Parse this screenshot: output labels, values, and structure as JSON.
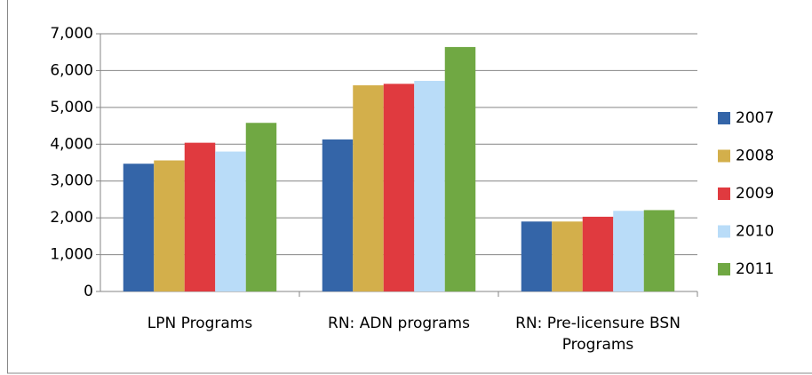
{
  "chart_data": {
    "type": "bar",
    "categories": [
      "LPN Programs",
      "RN: ADN programs",
      "RN: Pre-licensure BSN Programs"
    ],
    "series": [
      {
        "name": "2007",
        "color": "#3465a8",
        "values": [
          3470,
          4130,
          1900
        ]
      },
      {
        "name": "2008",
        "color": "#d3af4b",
        "values": [
          3560,
          5600,
          1900
        ]
      },
      {
        "name": "2009",
        "color": "#e03a3f",
        "values": [
          4040,
          5640,
          2030
        ]
      },
      {
        "name": "2010",
        "color": "#b9dcf8",
        "values": [
          3800,
          5720,
          2190
        ]
      },
      {
        "name": "2011",
        "color": "#70a843",
        "values": [
          4580,
          6640,
          2210
        ]
      }
    ],
    "ylim": [
      0,
      7000
    ],
    "yticks": [
      0,
      {
        "value": 1000,
        "label": "1,000"
      },
      {
        "value": 2000,
        "label": "2,000"
      },
      {
        "value": 3000,
        "label": "3,000"
      },
      {
        "value": 4000,
        "label": "4,000"
      },
      {
        "value": 5000,
        "label": "5,000"
      },
      {
        "value": 6000,
        "label": "6,000"
      },
      {
        "value": 7000,
        "label": "7,000"
      }
    ],
    "grid": true,
    "legend": "right"
  }
}
